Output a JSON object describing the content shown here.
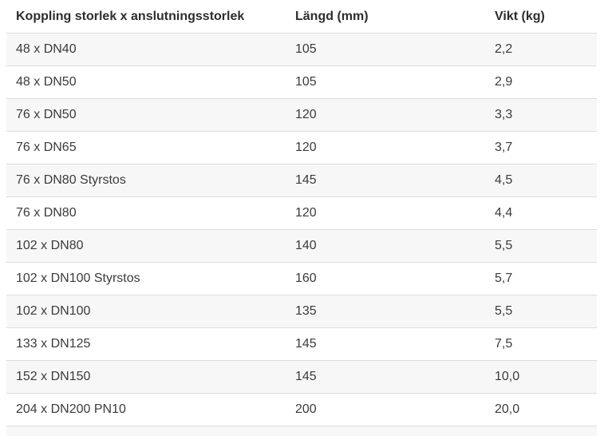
{
  "chart_data": {
    "type": "table",
    "title": "",
    "columns": [
      "Koppling storlek x anslutningsstorlek",
      "Längd (mm)",
      "Vikt (kg)"
    ],
    "rows": [
      [
        "48 x DN40",
        "105",
        "2,2"
      ],
      [
        "48 x DN50",
        "105",
        "2,9"
      ],
      [
        "76 x DN50",
        "120",
        "3,3"
      ],
      [
        "76 x DN65",
        "120",
        "3,7"
      ],
      [
        "76 x DN80 Styrstos",
        "145",
        "4,5"
      ],
      [
        "76 x DN80",
        "120",
        "4,4"
      ],
      [
        "102 x DN80",
        "140",
        "5,5"
      ],
      [
        "102 x DN100 Styrstos",
        "160",
        "5,7"
      ],
      [
        "102 x DN100",
        "135",
        "5,5"
      ],
      [
        "133 x DN125",
        "145",
        "7,5"
      ],
      [
        "152 x DN150",
        "145",
        "10,0"
      ],
      [
        "204 x DN200 PN10",
        "200",
        "20,0"
      ]
    ],
    "layout": {
      "striped": true,
      "stripe_rows": "odd",
      "grid": "horizontal-borders-only"
    }
  },
  "colors": {
    "background": "#ffffff",
    "row_stripe": "#f7f7f7",
    "border": "#dcdcdc",
    "header_text": "#2d2d2d",
    "body_text": "#3b3b3b"
  }
}
